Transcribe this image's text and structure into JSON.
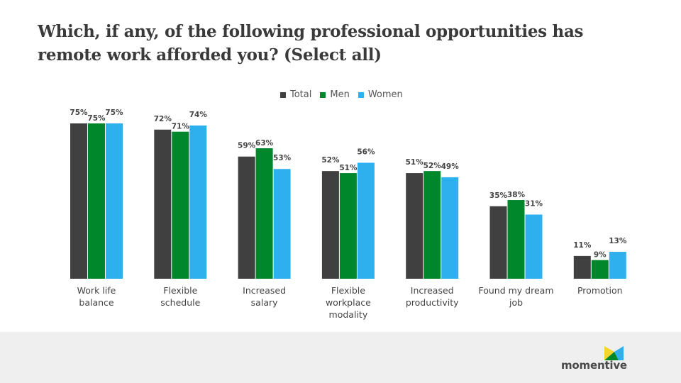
{
  "title": "Which, if any, of the following professional opportunities has remote work afforded you? (Select all)",
  "logo": "momentive",
  "chart_data": {
    "type": "bar",
    "title": "Which, if any, of the following professional opportunities has remote work afforded you? (Select all)",
    "categories": [
      [
        "Work life",
        "balance"
      ],
      [
        "Flexible",
        "schedule"
      ],
      [
        "Increased",
        "salary"
      ],
      [
        "Flexible",
        "workplace",
        "modality"
      ],
      [
        "Increased",
        "productivity"
      ],
      [
        "Found my dream",
        "job"
      ],
      [
        "Promotion"
      ]
    ],
    "series": [
      {
        "name": "Total",
        "color": "#404040",
        "values": [
          75,
          72,
          59,
          52,
          51,
          35,
          11
        ]
      },
      {
        "name": "Men",
        "color": "#00862b",
        "values": [
          75,
          71,
          63,
          51,
          52,
          38,
          9
        ]
      },
      {
        "name": "Women",
        "color": "#2eb0ef",
        "values": [
          75,
          74,
          53,
          56,
          49,
          31,
          13
        ]
      }
    ],
    "ylim": [
      0,
      100
    ],
    "value_suffix": "%",
    "legend": "top-center",
    "grid": false
  }
}
